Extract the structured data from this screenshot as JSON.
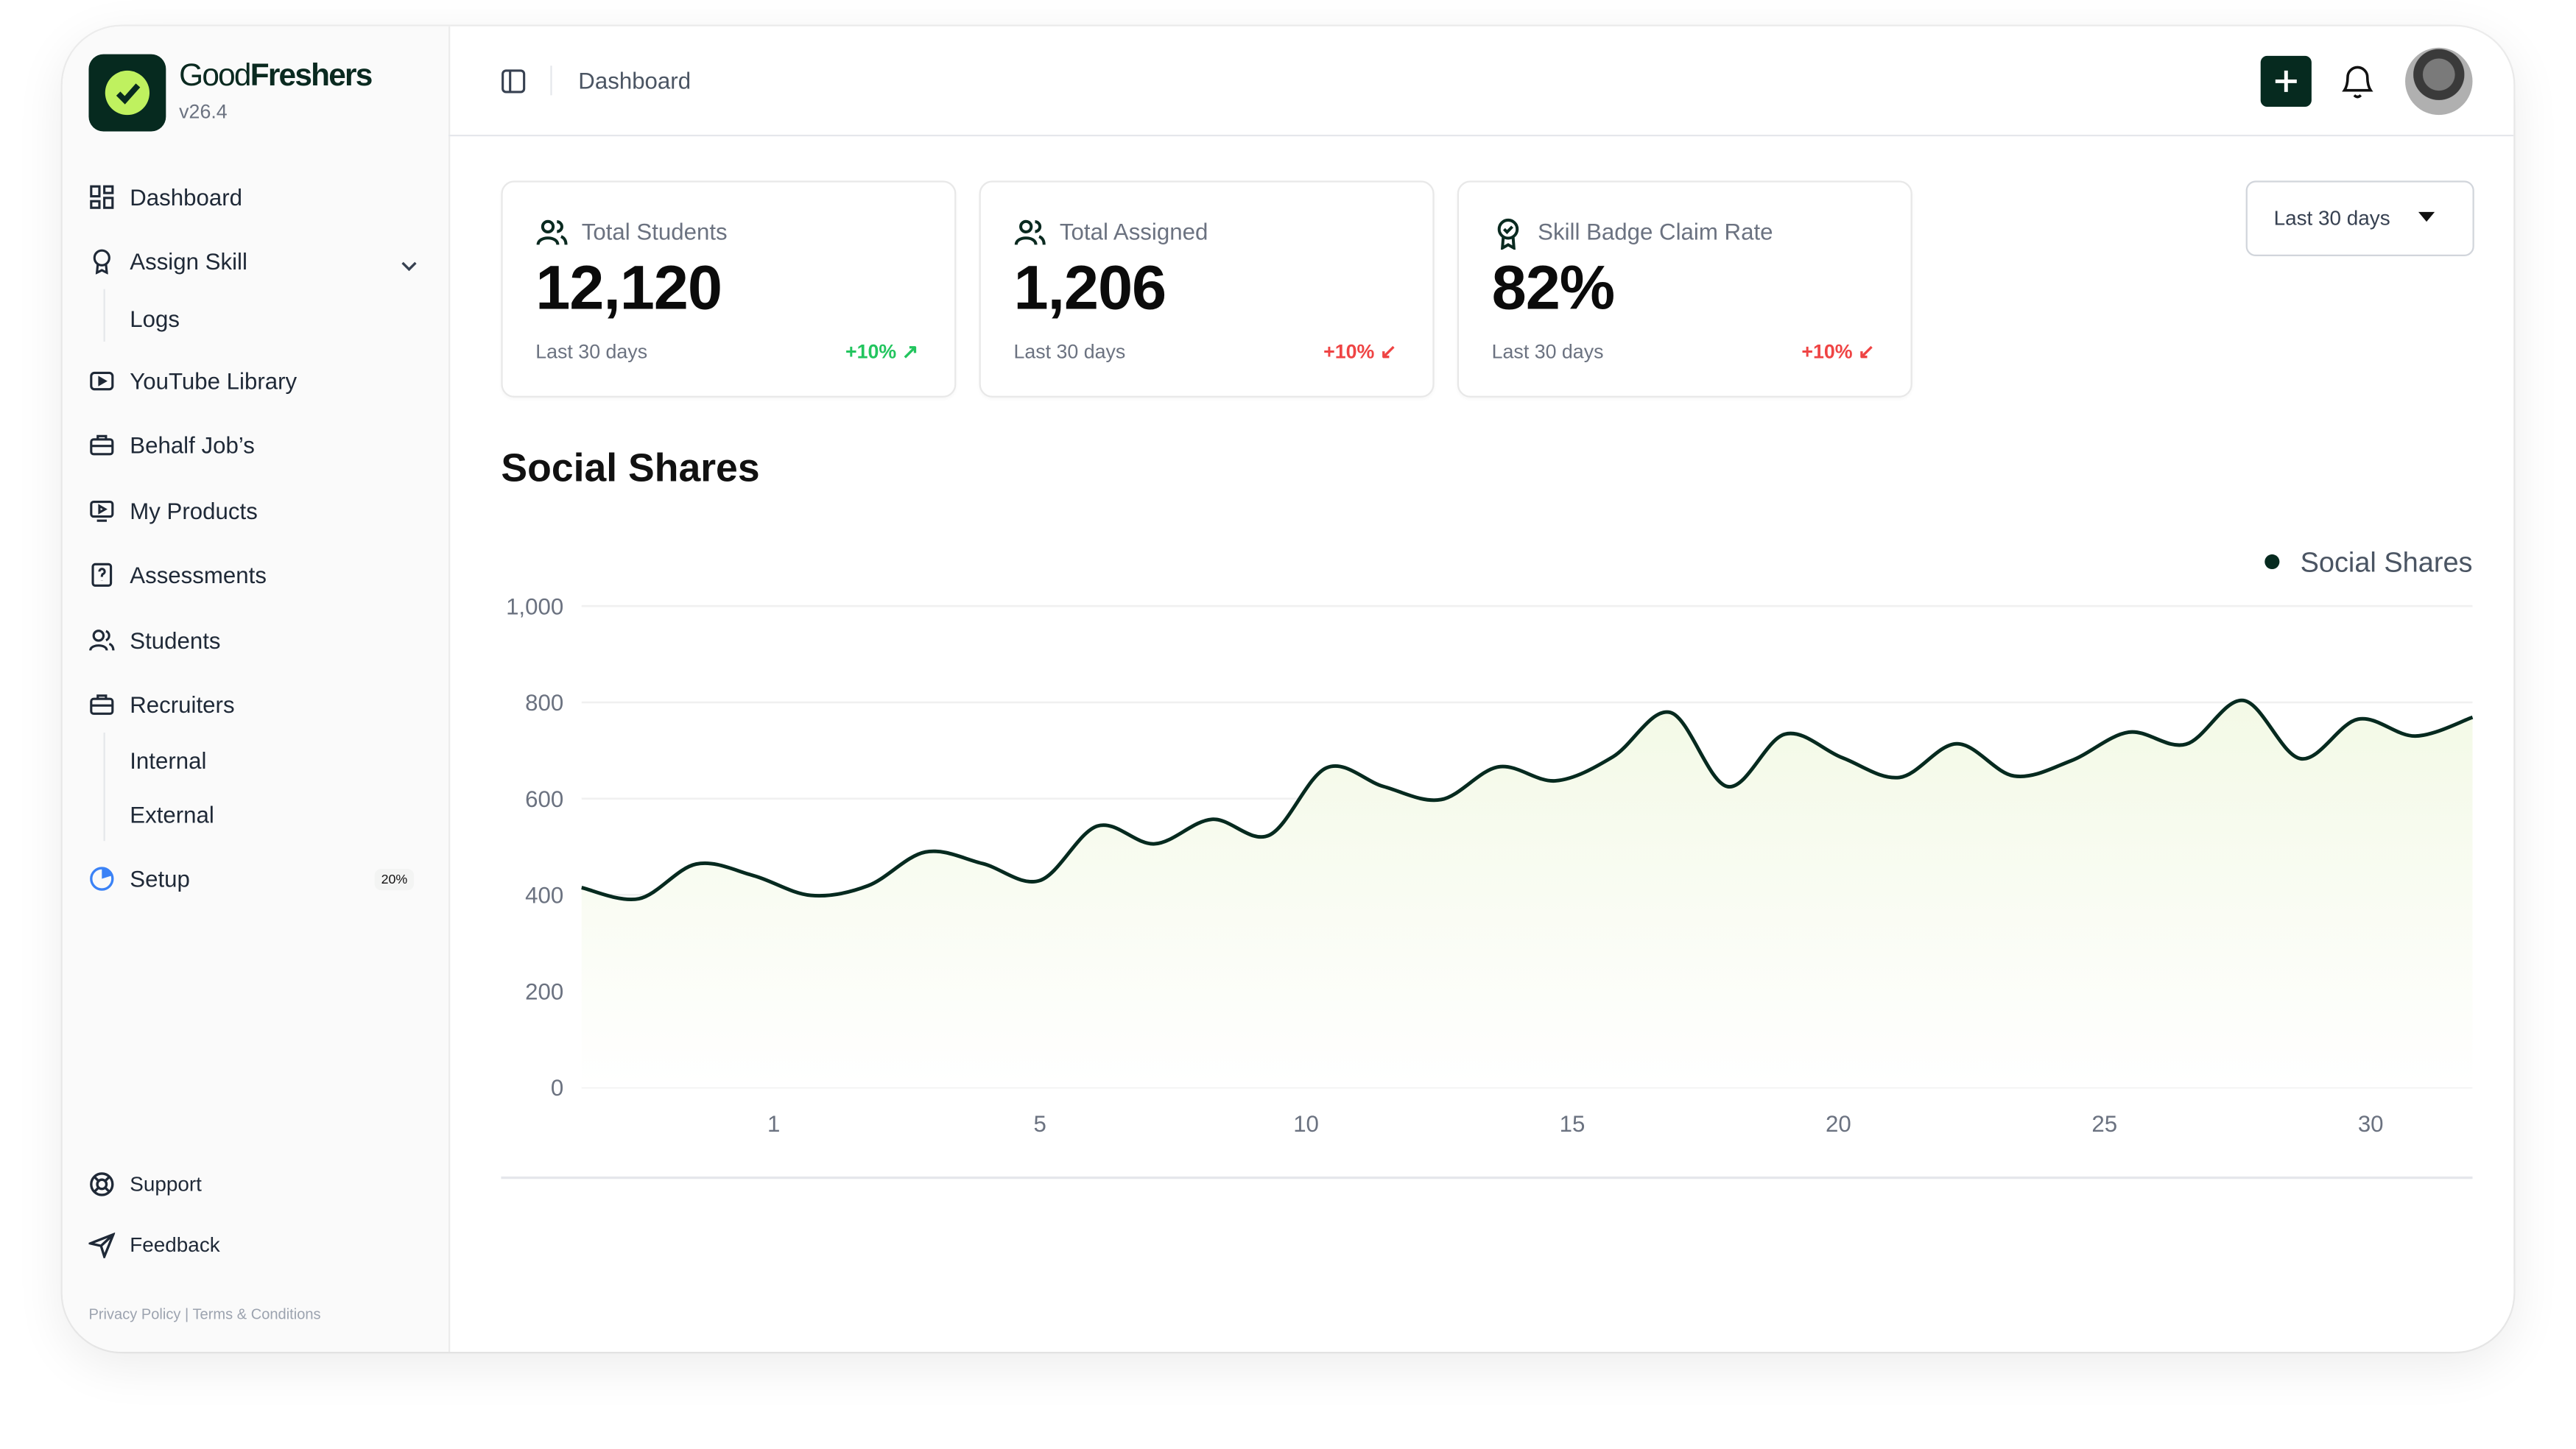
{
  "brand": {
    "name_light": "Good",
    "name_bold": "Freshers",
    "version": "v26.4",
    "accent": "#bff15f",
    "dark": "#062a1f"
  },
  "sidebar": {
    "items": [
      {
        "label": "Dashboard",
        "icon": "dashboard-grid-icon"
      },
      {
        "label": "Assign Skill",
        "icon": "badge-icon",
        "expanded": true,
        "children": [
          {
            "label": "Logs"
          }
        ]
      },
      {
        "label": "YouTube Library",
        "icon": "video-icon"
      },
      {
        "label": "Behalf Job’s",
        "icon": "briefcase-icon"
      },
      {
        "label": "My Products",
        "icon": "product-icon"
      },
      {
        "label": "Assessments",
        "icon": "question-file-icon"
      },
      {
        "label": "Students",
        "icon": "users-icon"
      },
      {
        "label": "Recruiters",
        "icon": "briefcase-icon",
        "children": [
          {
            "label": "Internal"
          },
          {
            "label": "External"
          }
        ]
      },
      {
        "label": "Setup",
        "icon": "progress-pie-icon",
        "badge": "20%",
        "progress": 0.2
      }
    ],
    "bottom": [
      {
        "label": "Support",
        "icon": "lifebuoy-icon"
      },
      {
        "label": "Feedback",
        "icon": "send-icon"
      }
    ],
    "footer": {
      "privacy": "Privacy Policy",
      "sep": "|",
      "terms": "Terms & Conditions"
    }
  },
  "header": {
    "breadcrumb": "Dashboard"
  },
  "stats": [
    {
      "label": "Total Students",
      "value": "12,120",
      "period": "Last 30 days",
      "change": "+10%",
      "direction": "up",
      "color": "#22c55e"
    },
    {
      "label": "Total Assigned",
      "value": "1,206",
      "period": "Last 30 days",
      "change": "+10%",
      "direction": "down",
      "color": "#ef4444"
    },
    {
      "label": "Skill Badge Claim Rate",
      "value": "82%",
      "period": "Last 30 days",
      "change": "+10%",
      "direction": "down",
      "color": "#ef4444"
    }
  ],
  "filter": {
    "selected": "Last 30 days"
  },
  "section_title": "Social Shares",
  "chart_data": {
    "type": "area",
    "title": "",
    "legend": {
      "position": "top-right"
    },
    "series": [
      {
        "name": "Social Shares",
        "color": "#062a1f",
        "fill": "#f4fae8",
        "values": [
          415,
          392,
          464,
          440,
          399,
          419,
          489,
          465,
          430,
          543,
          506,
          557,
          524,
          664,
          625,
          598,
          666,
          637,
          687,
          779,
          625,
          734,
          685,
          644,
          714,
          647,
          679,
          738,
          713,
          804,
          683,
          765,
          730,
          769
        ]
      }
    ],
    "yticks": [
      "0",
      "200",
      "400",
      "600",
      "800",
      "1,000"
    ],
    "ylim": [
      0,
      1000
    ],
    "xticks": [
      "1",
      "5",
      "10",
      "15",
      "20",
      "25",
      "30"
    ],
    "grid": true
  }
}
